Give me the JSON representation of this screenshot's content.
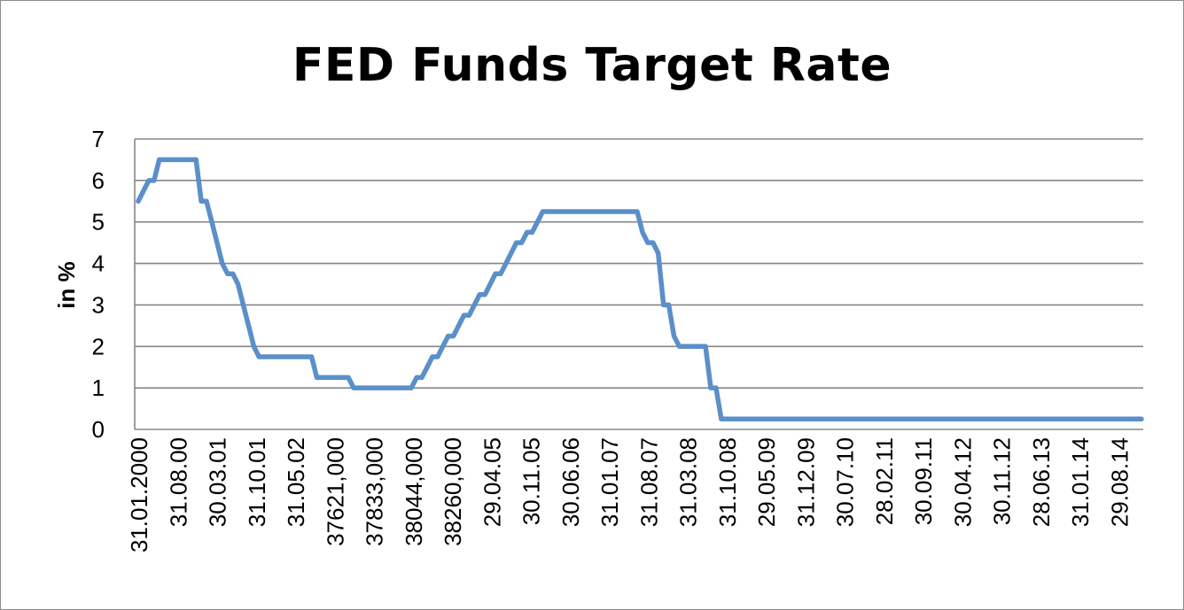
{
  "chart_data": {
    "type": "line",
    "title": "FED Funds Target Rate",
    "xlabel": "",
    "ylabel": "in %",
    "ylim": [
      0,
      7
    ],
    "yticks": [
      0,
      1,
      2,
      3,
      4,
      5,
      6,
      7
    ],
    "grid": true,
    "legend": "none",
    "x_tick_labels": [
      "31.01.2000",
      "31.08.00",
      "30.03.01",
      "31.10.01",
      "31.05.02",
      "37621,000",
      "37833,000",
      "38044,000",
      "38260,000",
      "29.04.05",
      "30.11.05",
      "30.06.06",
      "31.01.07",
      "31.08.07",
      "31.03.08",
      "31.10.08",
      "29.05.09",
      "31.12.09",
      "30.07.10",
      "28.02.11",
      "30.09.11",
      "30.04.12",
      "30.11.12",
      "28.06.13",
      "31.01.14",
      "29.08.14"
    ],
    "series": [
      {
        "color": "#5b8fc9",
        "values": [
          5.5,
          5.75,
          6.0,
          6.0,
          6.5,
          6.5,
          6.5,
          6.5,
          6.5,
          6.5,
          6.5,
          6.5,
          5.5,
          5.5,
          5.0,
          4.5,
          4.0,
          3.75,
          3.75,
          3.5,
          3.0,
          2.5,
          2.0,
          1.75,
          1.75,
          1.75,
          1.75,
          1.75,
          1.75,
          1.75,
          1.75,
          1.75,
          1.75,
          1.75,
          1.25,
          1.25,
          1.25,
          1.25,
          1.25,
          1.25,
          1.25,
          1.0,
          1.0,
          1.0,
          1.0,
          1.0,
          1.0,
          1.0,
          1.0,
          1.0,
          1.0,
          1.0,
          1.0,
          1.25,
          1.25,
          1.5,
          1.75,
          1.75,
          2.0,
          2.25,
          2.25,
          2.5,
          2.75,
          2.75,
          3.0,
          3.25,
          3.25,
          3.5,
          3.75,
          3.75,
          4.0,
          4.25,
          4.5,
          4.5,
          4.75,
          4.75,
          5.0,
          5.25,
          5.25,
          5.25,
          5.25,
          5.25,
          5.25,
          5.25,
          5.25,
          5.25,
          5.25,
          5.25,
          5.25,
          5.25,
          5.25,
          5.25,
          5.25,
          5.25,
          5.25,
          5.25,
          4.75,
          4.5,
          4.5,
          4.25,
          3.0,
          3.0,
          2.25,
          2.0,
          2.0,
          2.0,
          2.0,
          2.0,
          2.0,
          1.0,
          1.0,
          0.25,
          0.25,
          0.25,
          0.25,
          0.25,
          0.25,
          0.25,
          0.25,
          0.25,
          0.25,
          0.25,
          0.25,
          0.25,
          0.25,
          0.25,
          0.25,
          0.25,
          0.25,
          0.25,
          0.25,
          0.25,
          0.25,
          0.25,
          0.25,
          0.25,
          0.25,
          0.25,
          0.25,
          0.25,
          0.25,
          0.25,
          0.25,
          0.25,
          0.25,
          0.25,
          0.25,
          0.25,
          0.25,
          0.25,
          0.25,
          0.25,
          0.25,
          0.25,
          0.25,
          0.25,
          0.25,
          0.25,
          0.25,
          0.25,
          0.25,
          0.25,
          0.25,
          0.25,
          0.25,
          0.25,
          0.25,
          0.25,
          0.25,
          0.25,
          0.25,
          0.25,
          0.25,
          0.25,
          0.25,
          0.25,
          0.25,
          0.25,
          0.25,
          0.25,
          0.25,
          0.25,
          0.25,
          0.25,
          0.25,
          0.25,
          0.25,
          0.25,
          0.25,
          0.25,
          0.25,
          0.25
        ]
      }
    ]
  },
  "colors": {
    "line": "#5b8fc9",
    "grid": "#868686",
    "frame": "#8c8c8c"
  }
}
